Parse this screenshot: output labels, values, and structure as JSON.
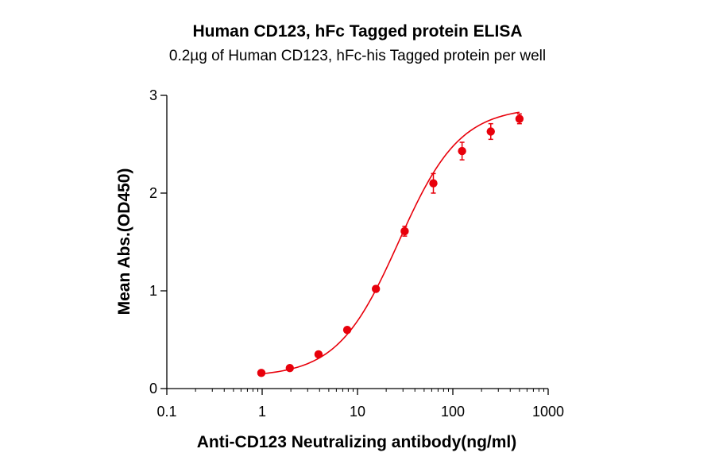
{
  "chart_data": {
    "type": "scatter",
    "title": "Human CD123,  hFc Tagged protein ELISA",
    "subtitle": "0.2µg of Human CD123, hFc-his Tagged protein per well",
    "xlabel": "Anti-CD123 Neutralizing antibody(ng/ml)",
    "ylabel": "Mean Abs.(OD450)",
    "x_scale": "log",
    "xlim": [
      0.1,
      1000
    ],
    "ylim": [
      0,
      3
    ],
    "x_ticks": [
      "0.1",
      "1",
      "10",
      "100",
      "1000"
    ],
    "y_ticks": [
      "0",
      "1",
      "2",
      "3"
    ],
    "grid": false,
    "color": "#e8000b",
    "series": [
      {
        "x": [
          0.98,
          1.95,
          3.9,
          7.8,
          15.6,
          31.25,
          62.5,
          125,
          250,
          500
        ],
        "y": [
          0.16,
          0.21,
          0.35,
          0.6,
          1.02,
          1.61,
          2.1,
          2.43,
          2.63,
          2.76
        ],
        "error": [
          0.01,
          0.01,
          0.02,
          0.02,
          0.03,
          0.05,
          0.1,
          0.09,
          0.08,
          0.05
        ]
      }
    ],
    "fit": {
      "bottom": 0.12,
      "top": 2.88,
      "ec50": 27,
      "hill": 1.35
    }
  }
}
